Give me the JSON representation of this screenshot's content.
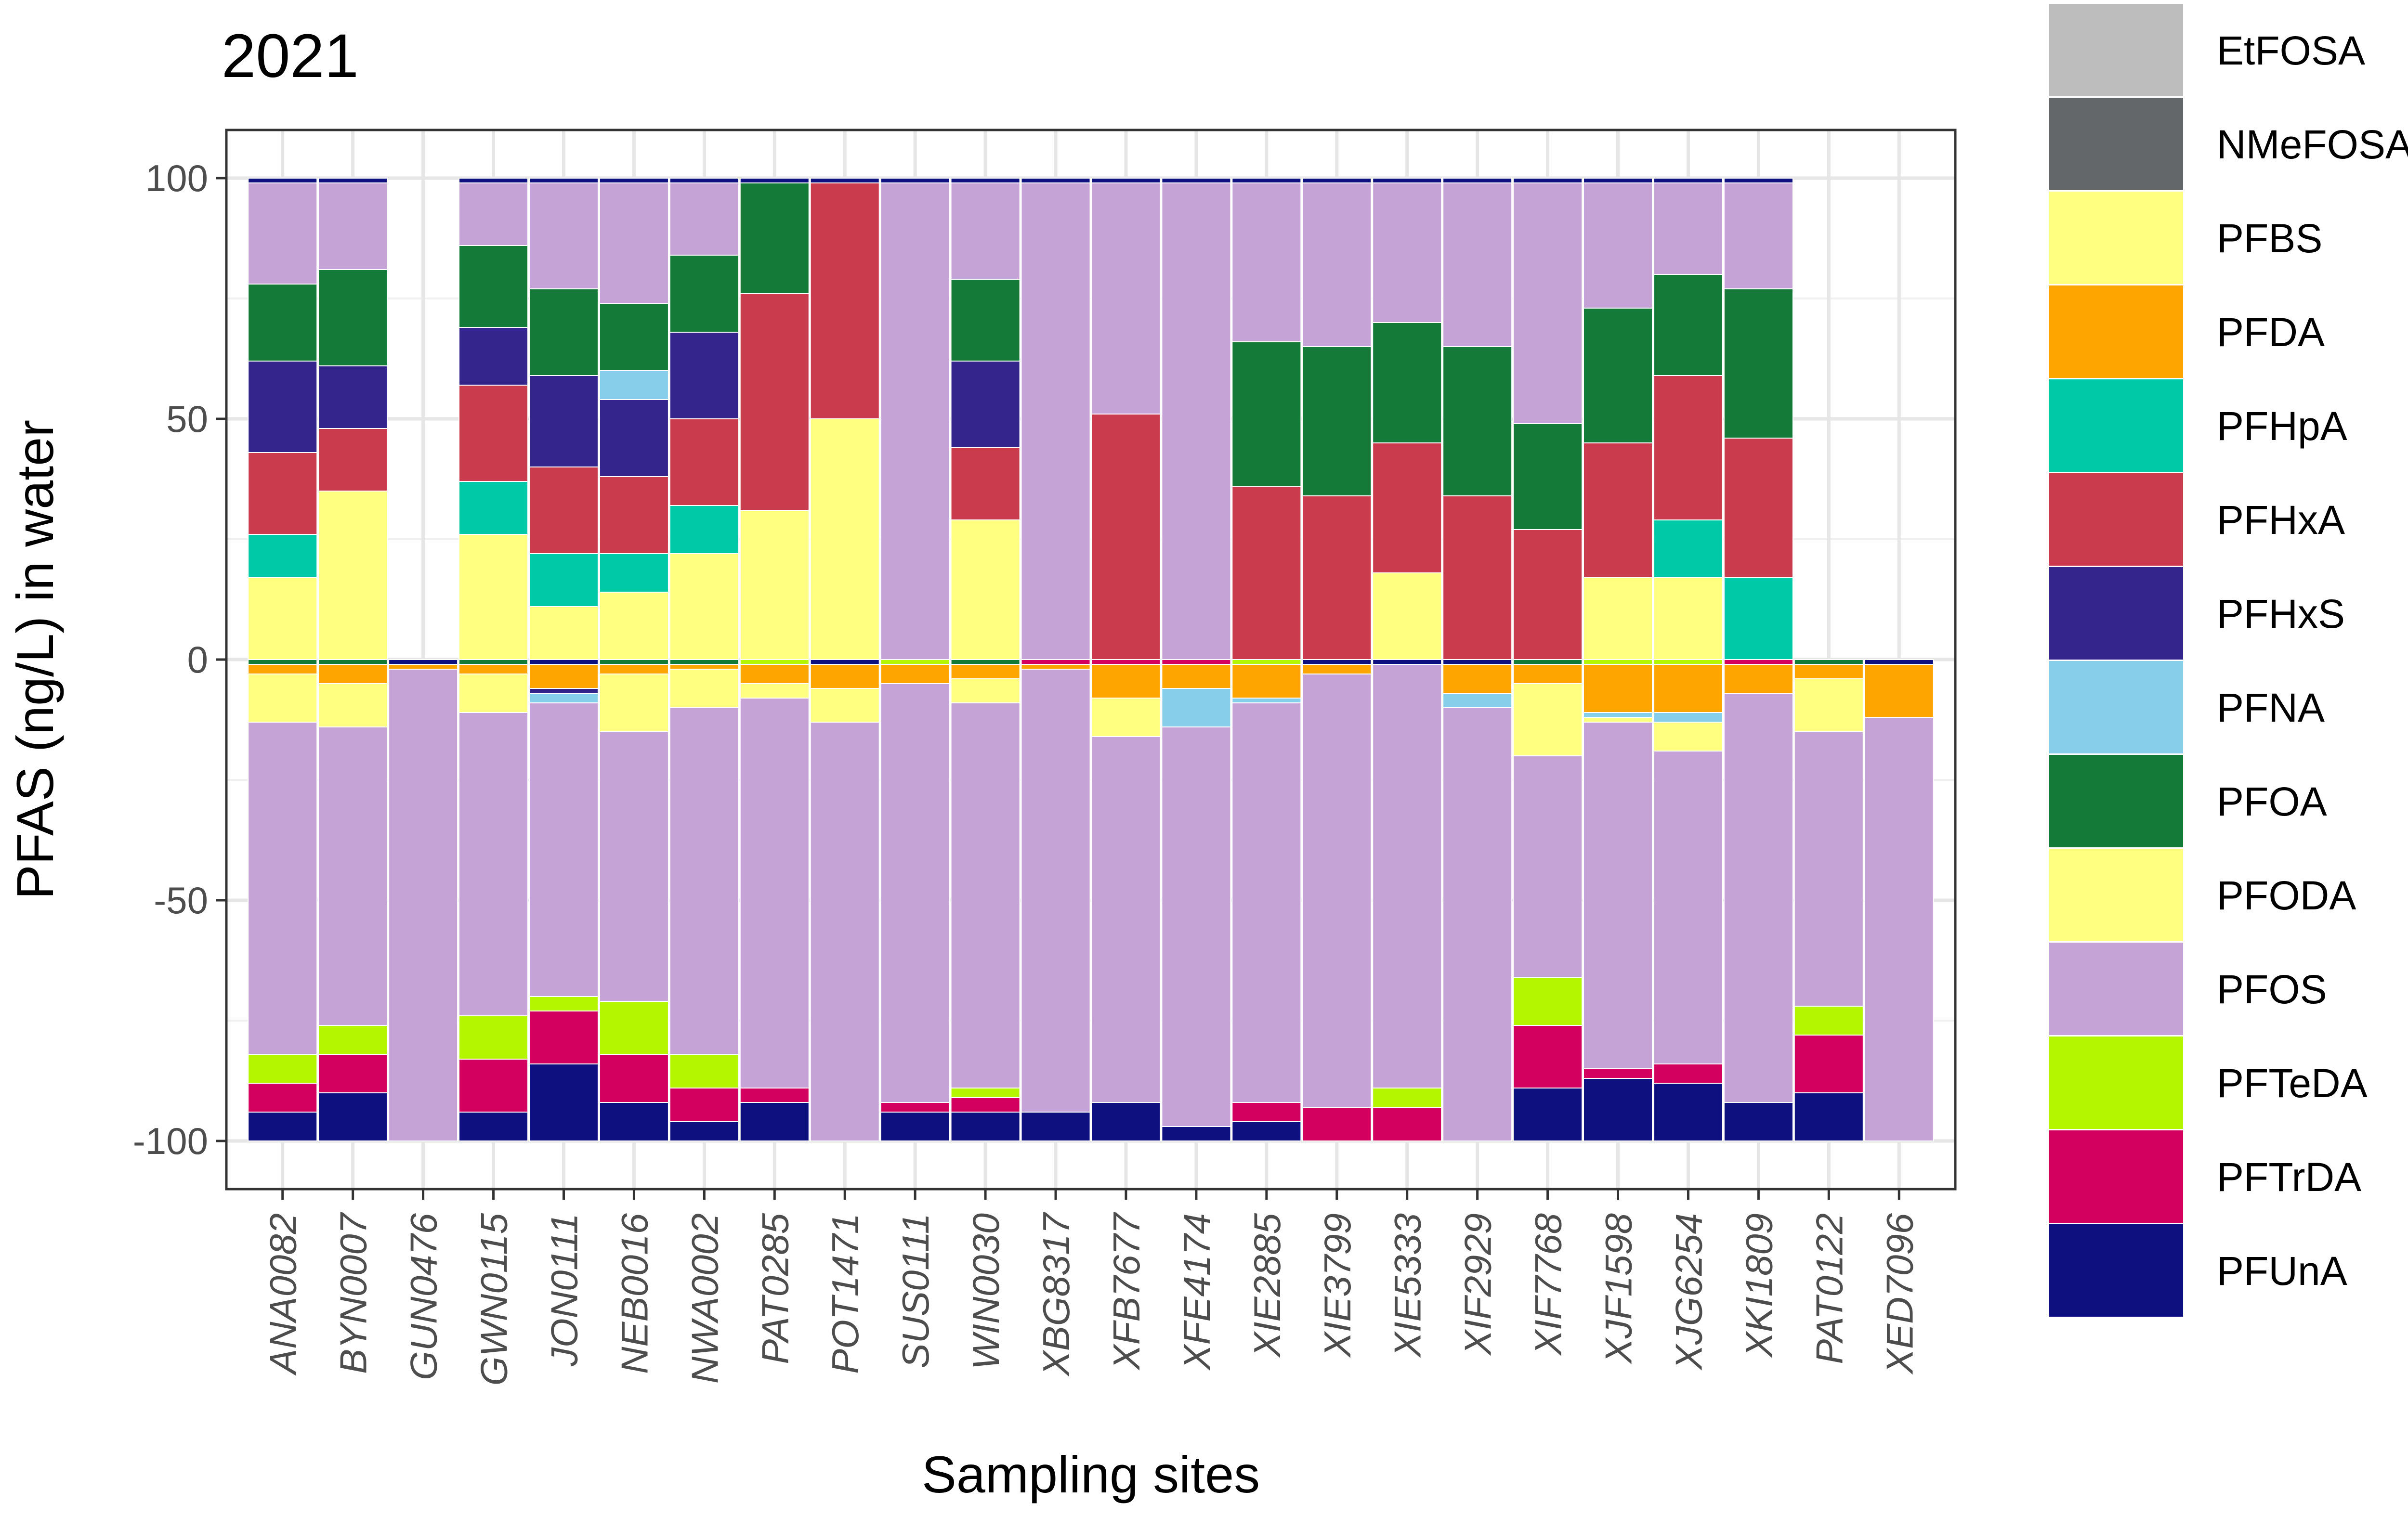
{
  "chart_data": {
    "type": "bar",
    "stacked": true,
    "diverging": true,
    "title": "2021",
    "xlabel": "Sampling sites",
    "ylabel": "PFAS (ng/L) in water",
    "ylim": [
      -110,
      110
    ],
    "yticks": [
      -100,
      -50,
      0,
      50,
      100
    ],
    "grid": true,
    "legend_position": "right",
    "categories": [
      "ANA0082",
      "BYN0007",
      "GUN0476",
      "GWN0115",
      "JON0111",
      "NEB0016",
      "NWA0002",
      "PAT0285",
      "POT1471",
      "SUS0111",
      "WIN0030",
      "XBG8317",
      "XFB7677",
      "XFE4174",
      "XIE2885",
      "XIE3799",
      "XIE5333",
      "XIF2929",
      "XIF7768",
      "XJF1598",
      "XJG6254",
      "XKI1809",
      "PAT0122",
      "XED7096"
    ],
    "legend": [
      "EtFOSA",
      "NMeFOSA",
      "PFBS",
      "PFDA",
      "PFHpA",
      "PFHxA",
      "PFHxS",
      "PFNA",
      "PFOA",
      "PFODA",
      "PFOS",
      "PFTeDA",
      "PFTrDA",
      "PFUnA"
    ],
    "colors": {
      "EtFOSA": "#bdbdbd",
      "NMeFOSA": "#636769",
      "PFBS": "#ffff80",
      "PFDA": "#ffa500",
      "PFHpA": "#00c9a7",
      "PFHxA": "#c93b4d",
      "PFHxS": "#34258c",
      "PFNA": "#87ceeb",
      "PFOA": "#137a37",
      "PFODA": "#ffff80",
      "PFOS": "#c6a3d6",
      "PFTeDA": "#b4f500",
      "PFTrDA": "#d3005f",
      "PFUnA": "#0e1080"
    },
    "upper_order": [
      "PFBS",
      "PFHpA",
      "PFHxA",
      "PFHxS",
      "PFNA",
      "PFOA",
      "PFOS",
      "PFUnA"
    ],
    "lower_order": [
      "PFOA",
      "PFDA",
      "PFODA",
      "PFNA",
      "PFHxS",
      "PFOS",
      "PFTeDA",
      "PFTrDA",
      "PFUnA"
    ],
    "upper": [
      {
        "PFBS": 17,
        "PFHpA": 9,
        "PFHxA": 17,
        "PFHxS": 19,
        "PFOA": 16,
        "PFOS": 21,
        "PFUnA": 1
      },
      {
        "PFBS": 35,
        "PFHxA": 13,
        "PFHxS": 13,
        "PFOA": 20,
        "PFOS": 18,
        "PFUnA": 1
      },
      {},
      {
        "PFBS": 26,
        "PFHpA": 11,
        "PFHxA": 20,
        "PFHxS": 12,
        "PFOA": 17,
        "PFOS": 13,
        "PFUnA": 1
      },
      {
        "PFBS": 11,
        "PFHpA": 11,
        "PFHxA": 18,
        "PFHxS": 19,
        "PFOA": 18,
        "PFOS": 22,
        "PFUnA": 1
      },
      {
        "PFBS": 14,
        "PFHpA": 8,
        "PFHxA": 16,
        "PFHxS": 16,
        "PFNA": 6,
        "PFOA": 14,
        "PFOS": 25,
        "PFUnA": 1
      },
      {
        "PFBS": 22,
        "PFHpA": 10,
        "PFHxA": 18,
        "PFHxS": 18,
        "PFOA": 16,
        "PFOS": 15,
        "PFUnA": 1
      },
      {
        "PFBS": 31,
        "PFHxA": 45,
        "PFOA": 23,
        "PFUnA": 1
      },
      {
        "PFBS": 50,
        "PFHxA": 49,
        "PFUnA": 1
      },
      {
        "PFOS": 99,
        "PFUnA": 1
      },
      {
        "PFBS": 29,
        "PFHxA": 15,
        "PFHxS": 18,
        "PFOA": 17,
        "PFOS": 20,
        "PFUnA": 1
      },
      {
        "PFOS": 99,
        "PFUnA": 1
      },
      {
        "PFHxA": 51,
        "PFOS": 48,
        "PFUnA": 1
      },
      {
        "PFOS": 99,
        "PFUnA": 1
      },
      {
        "PFHxA": 36,
        "PFOA": 30,
        "PFOS": 33,
        "PFUnA": 1
      },
      {
        "PFHxA": 34,
        "PFOA": 31,
        "PFOS": 34,
        "PFUnA": 1
      },
      {
        "PFBS": 18,
        "PFHxA": 27,
        "PFOA": 25,
        "PFOS": 29,
        "PFUnA": 1
      },
      {
        "PFHxA": 34,
        "PFOA": 31,
        "PFOS": 34,
        "PFUnA": 1
      },
      {
        "PFHxA": 27,
        "PFOA": 22,
        "PFOS": 50,
        "PFUnA": 1
      },
      {
        "PFBS": 17,
        "PFHxA": 28,
        "PFOA": 28,
        "PFOS": 26,
        "PFUnA": 1
      },
      {
        "PFBS": 17,
        "PFHpA": 12,
        "PFHxA": 30,
        "PFOA": 21,
        "PFOS": 19,
        "PFUnA": 1
      },
      {
        "PFHpA": 17,
        "PFHxA": 29,
        "PFOA": 31,
        "PFOS": 22,
        "PFUnA": 1
      },
      {},
      {}
    ],
    "lower": [
      {
        "PFOA": 1,
        "PFDA": 2,
        "PFODA": 10,
        "PFOS": 69,
        "PFTeDA": 6,
        "PFTrDA": 6,
        "PFUnA": 6
      },
      {
        "PFOA": 1,
        "PFDA": 4,
        "PFODA": 9,
        "PFOS": 62,
        "PFTeDA": 6,
        "PFTrDA": 8,
        "PFUnA": 10
      },
      {
        "PFUnA": 1,
        "PFDA": 1,
        "PFOS": 98
      },
      {
        "PFOA": 1,
        "PFDA": 2,
        "PFODA": 8,
        "PFOS": 63,
        "PFTeDA": 9,
        "PFTrDA": 11,
        "PFUnA": 6
      },
      {
        "PFUnA": 1,
        "PFDA": 5,
        "PFHxS": 1,
        "PFNA": 2,
        "PFOS": 61,
        "PFTeDA": 3,
        "PFTrDA": 11,
        "PFUnA2": 16
      },
      {
        "PFOA": 1,
        "PFDA": 2,
        "PFODA": 12,
        "PFOS": 56,
        "PFTeDA": 11,
        "PFTrDA": 10,
        "PFUnA": 8
      },
      {
        "PFOA": 1,
        "PFDA": 1,
        "PFODA": 8,
        "PFOS": 72,
        "PFTeDA": 7,
        "PFTrDA": 7,
        "PFUnA": 4
      },
      {
        "PFTeDA": 1,
        "PFDA": 4,
        "PFODA": 3,
        "PFOS": 81,
        "PFTrDA": 3,
        "PFUnA": 8
      },
      {
        "PFUnA": 1,
        "PFDA": 5,
        "PFODA": 7,
        "PFOS": 87
      },
      {
        "PFTeDA": 1,
        "PFDA": 4,
        "PFOS": 87,
        "PFTrDA": 2,
        "PFUnA": 6
      },
      {
        "PFOA": 1,
        "PFDA": 3,
        "PFODA": 5,
        "PFOS": 80,
        "PFTeDA": 2,
        "PFTrDA": 3,
        "PFUnA": 6
      },
      {
        "PFTrDA": 1,
        "PFDA": 1,
        "PFOS": 92,
        "PFUnA": 6
      },
      {
        "PFTrDA": 1,
        "PFDA": 7,
        "PFODA": 8,
        "PFOS": 76,
        "PFUnA": 8
      },
      {
        "PFTrDA": 1,
        "PFDA": 5,
        "PFNA": 8,
        "PFOS": 83,
        "PFUnA": 3
      },
      {
        "PFTeDA": 1,
        "PFDA": 7,
        "PFNA": 1,
        "PFOS": 83,
        "PFTrDA": 4,
        "PFUnA": 4
      },
      {
        "PFUnA": 1,
        "PFDA": 2,
        "PFOS": 90,
        "PFTrDA": 7
      },
      {
        "PFUnA": 1,
        "PFOS": 88,
        "PFTeDA": 4,
        "PFTrDA": 7
      },
      {
        "PFUnA": 1,
        "PFDA": 6,
        "PFNA": 3,
        "PFOS": 90
      },
      {
        "PFOA": 1,
        "PFDA": 4,
        "PFODA": 15,
        "PFOS": 46,
        "PFTeDA": 10,
        "PFTrDA": 13,
        "PFUnA": 11
      },
      {
        "PFTeDA": 1,
        "PFDA": 10,
        "PFNA": 1,
        "PFODA": 1,
        "PFOS": 72,
        "PFTrDA": 2,
        "PFUnA": 13
      },
      {
        "PFTeDA": 1,
        "PFDA": 10,
        "PFNA": 2,
        "PFODA": 6,
        "PFOS": 65,
        "PFTrDA": 4,
        "PFUnA": 12
      },
      {
        "PFTrDA": 1,
        "PFDA": 6,
        "PFOS": 85,
        "PFUnA": 8
      },
      {
        "PFOA": 1,
        "PFDA": 3,
        "PFODA": 11,
        "PFOS": 57,
        "PFTeDA": 6,
        "PFTrDA": 12,
        "PFUnA": 10
      },
      {
        "PFUnA": 1,
        "PFDA": 11,
        "PFOS": 88
      }
    ]
  }
}
